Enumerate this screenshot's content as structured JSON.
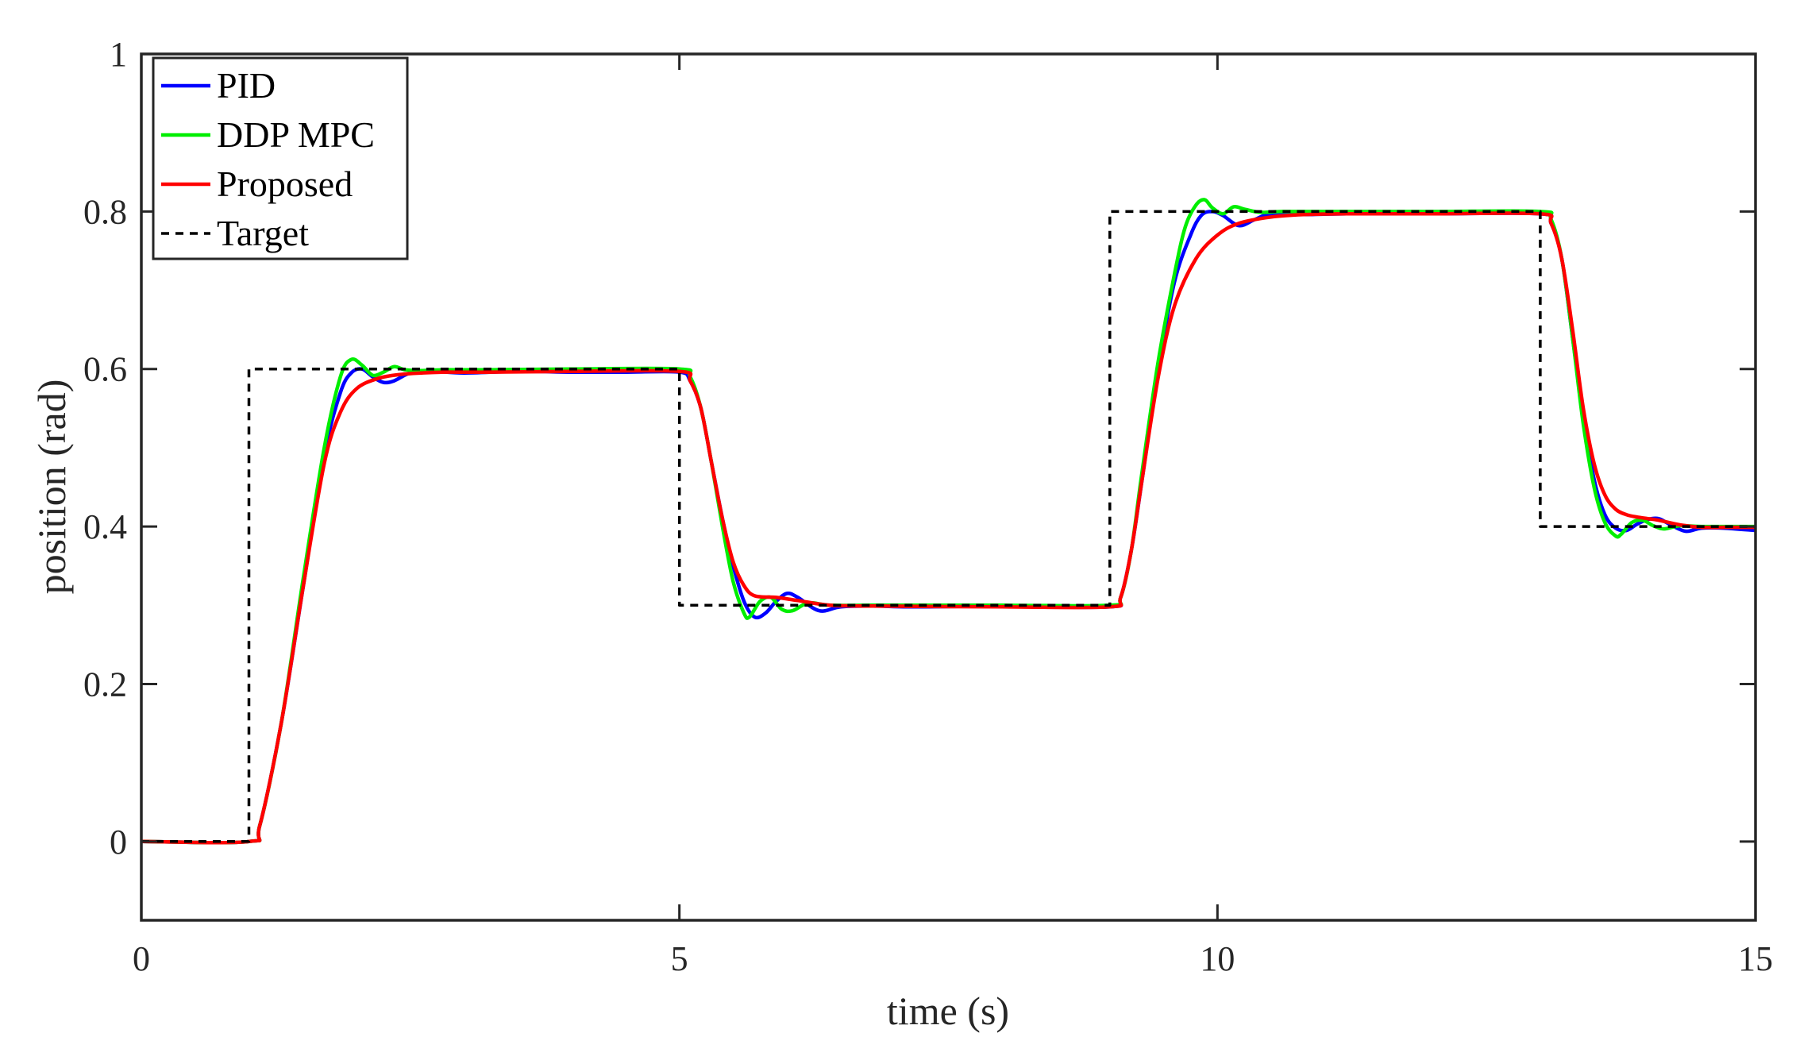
{
  "chart_data": {
    "type": "line",
    "title": "",
    "xlabel": "time (s)",
    "ylabel": "position (rad)",
    "xlim": [
      0,
      15
    ],
    "ylim": [
      -0.1,
      1.0
    ],
    "xticks": [
      0,
      5,
      10,
      15
    ],
    "xtick_labels": [
      "0",
      "5",
      "10",
      "15"
    ],
    "yticks": [
      0,
      0.2,
      0.4,
      0.6,
      0.8,
      1.0
    ],
    "ytick_labels": [
      "0",
      "0.2",
      "0.4",
      "0.6",
      "0.8",
      "1"
    ],
    "grid": false,
    "legend_position": "top-left",
    "series": [
      {
        "name": "PID",
        "color": "#0000ff",
        "style": "solid",
        "x": [
          0,
          1.0,
          1.1,
          1.3,
          1.5,
          1.7,
          1.85,
          1.95,
          2.05,
          2.15,
          2.25,
          2.35,
          2.5,
          2.7,
          3.0,
          3.5,
          4.0,
          4.5,
          5.0,
          5.1,
          5.2,
          5.3,
          5.4,
          5.5,
          5.6,
          5.7,
          5.8,
          5.9,
          6.0,
          6.1,
          6.3,
          6.5,
          6.8,
          7.2,
          8.0,
          9.0,
          9.1,
          9.2,
          9.3,
          9.45,
          9.6,
          9.75,
          9.85,
          9.95,
          10.05,
          10.2,
          10.35,
          10.5,
          10.8,
          11.2,
          12.0,
          13.0,
          13.1,
          13.2,
          13.3,
          13.4,
          13.5,
          13.6,
          13.7,
          13.8,
          13.9,
          14.0,
          14.1,
          14.2,
          14.35,
          14.5,
          14.7,
          15.0
        ],
        "y": [
          0,
          0,
          0.02,
          0.15,
          0.32,
          0.49,
          0.57,
          0.595,
          0.6,
          0.59,
          0.583,
          0.585,
          0.595,
          0.597,
          0.595,
          0.597,
          0.596,
          0.596,
          0.596,
          0.585,
          0.55,
          0.48,
          0.41,
          0.35,
          0.305,
          0.285,
          0.29,
          0.305,
          0.315,
          0.31,
          0.293,
          0.298,
          0.299,
          0.298,
          0.299,
          0.298,
          0.31,
          0.37,
          0.46,
          0.6,
          0.71,
          0.77,
          0.795,
          0.8,
          0.795,
          0.782,
          0.79,
          0.797,
          0.796,
          0.797,
          0.797,
          0.797,
          0.785,
          0.74,
          0.64,
          0.54,
          0.46,
          0.415,
          0.398,
          0.395,
          0.403,
          0.409,
          0.41,
          0.403,
          0.394,
          0.398,
          0.398,
          0.395
        ]
      },
      {
        "name": "DDP MPC",
        "color": "#00ee00",
        "style": "solid",
        "x": [
          0,
          1.0,
          1.1,
          1.3,
          1.5,
          1.7,
          1.85,
          1.95,
          2.05,
          2.15,
          2.25,
          2.35,
          2.45,
          2.6,
          2.8,
          3.2,
          4.0,
          5.0,
          5.1,
          5.2,
          5.3,
          5.4,
          5.5,
          5.6,
          5.65,
          5.75,
          5.85,
          5.95,
          6.05,
          6.2,
          6.4,
          6.8,
          8.0,
          9.0,
          9.1,
          9.2,
          9.3,
          9.45,
          9.6,
          9.7,
          9.8,
          9.88,
          9.95,
          10.05,
          10.15,
          10.25,
          10.4,
          10.6,
          11.0,
          12.0,
          13.0,
          13.1,
          13.2,
          13.3,
          13.4,
          13.5,
          13.6,
          13.7,
          13.75,
          13.85,
          13.95,
          14.05,
          14.15,
          14.3,
          14.5,
          15.0
        ],
        "y": [
          0,
          0,
          0.02,
          0.15,
          0.33,
          0.5,
          0.59,
          0.612,
          0.605,
          0.592,
          0.596,
          0.603,
          0.599,
          0.598,
          0.599,
          0.599,
          0.6,
          0.6,
          0.59,
          0.55,
          0.48,
          0.4,
          0.33,
          0.29,
          0.285,
          0.305,
          0.31,
          0.295,
          0.293,
          0.303,
          0.3,
          0.3,
          0.3,
          0.3,
          0.31,
          0.37,
          0.47,
          0.61,
          0.72,
          0.78,
          0.808,
          0.815,
          0.805,
          0.797,
          0.806,
          0.803,
          0.799,
          0.8,
          0.8,
          0.8,
          0.8,
          0.79,
          0.74,
          0.64,
          0.53,
          0.45,
          0.405,
          0.388,
          0.39,
          0.405,
          0.408,
          0.401,
          0.397,
          0.401,
          0.4,
          0.4
        ]
      },
      {
        "name": "Proposed",
        "color": "#ff0000",
        "style": "solid",
        "x": [
          0,
          1.0,
          1.1,
          1.3,
          1.5,
          1.7,
          1.85,
          2.0,
          2.2,
          2.4,
          2.6,
          2.8,
          3.2,
          4.0,
          5.0,
          5.1,
          5.2,
          5.3,
          5.4,
          5.5,
          5.6,
          5.7,
          5.9,
          6.1,
          6.4,
          6.8,
          8.0,
          9.0,
          9.1,
          9.2,
          9.3,
          9.45,
          9.6,
          9.8,
          10.0,
          10.2,
          10.5,
          10.8,
          11.2,
          12.0,
          13.0,
          13.1,
          13.2,
          13.3,
          13.4,
          13.5,
          13.6,
          13.7,
          13.8,
          13.9,
          14.0,
          14.1,
          14.3,
          14.5,
          14.7,
          15.0
        ],
        "y": [
          0,
          0,
          0.02,
          0.15,
          0.32,
          0.48,
          0.545,
          0.575,
          0.588,
          0.593,
          0.595,
          0.596,
          0.596,
          0.597,
          0.597,
          0.585,
          0.55,
          0.48,
          0.41,
          0.355,
          0.325,
          0.312,
          0.31,
          0.306,
          0.3,
          0.299,
          0.298,
          0.298,
          0.31,
          0.37,
          0.46,
          0.59,
          0.68,
          0.74,
          0.77,
          0.785,
          0.793,
          0.796,
          0.797,
          0.797,
          0.797,
          0.785,
          0.74,
          0.65,
          0.55,
          0.48,
          0.44,
          0.422,
          0.415,
          0.412,
          0.41,
          0.408,
          0.402,
          0.399,
          0.399,
          0.399
        ]
      },
      {
        "name": "Target",
        "color": "#000000",
        "style": "dashed",
        "x": [
          0,
          1.0,
          1.0,
          5.0,
          5.0,
          9.0,
          9.0,
          13.0,
          13.0,
          15.0
        ],
        "y": [
          0,
          0,
          0.6,
          0.6,
          0.3,
          0.3,
          0.8,
          0.8,
          0.4,
          0.4
        ]
      }
    ]
  }
}
